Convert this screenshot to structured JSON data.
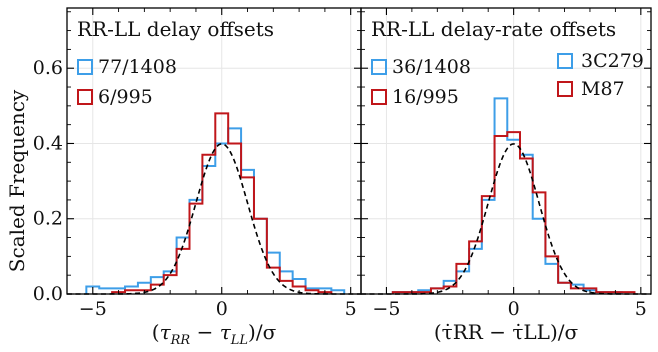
{
  "figure": {
    "ylabel": "Scaled Frequency"
  },
  "colors": {
    "3C279": "#3d9ee8",
    "M87": "#c0161a",
    "gaussian": "#000000",
    "grid": "#e6e6e6"
  },
  "legend": {
    "sources": [
      {
        "name": "3C279",
        "color": "#3d9ee8"
      },
      {
        "name": "M87",
        "color": "#c0161a"
      }
    ]
  },
  "chart_data": [
    {
      "type": "histogram",
      "title": "RR-LL delay offsets",
      "xlabel": "(τRR − τLL)/σ",
      "ylabel": "Scaled Frequency",
      "xlim": [
        -6.0,
        5.4
      ],
      "ylim": [
        0.0,
        0.76
      ],
      "xticks": [
        -5,
        0,
        5
      ],
      "yticks": [
        0.0,
        0.2,
        0.4,
        0.6
      ],
      "grid": true,
      "legend_position": "upper-left",
      "outlier_counts": [
        {
          "series": "3C279",
          "label": "77/1408"
        },
        {
          "series": "M87",
          "label": "6/995"
        }
      ],
      "reference_curve": {
        "type": "gaussian",
        "mean": 0,
        "sigma": 1,
        "style": "dashed"
      },
      "series": [
        {
          "name": "3C279",
          "bin_edges": [
            -5.25,
            -4.75,
            -4.25,
            -3.75,
            -3.25,
            -2.75,
            -2.25,
            -1.75,
            -1.25,
            -0.75,
            -0.25,
            0.25,
            0.75,
            1.25,
            1.75,
            2.25,
            2.75,
            3.25,
            3.75,
            4.25,
            4.75
          ],
          "values": [
            0.02,
            0.015,
            0.015,
            0.02,
            0.03,
            0.045,
            0.06,
            0.15,
            0.25,
            0.34,
            0.4,
            0.44,
            0.33,
            0.2,
            0.11,
            0.06,
            0.04,
            0.015,
            0.015,
            0.01
          ]
        },
        {
          "name": "M87",
          "bin_edges": [
            -4.25,
            -3.75,
            -3.25,
            -2.75,
            -2.25,
            -1.75,
            -1.25,
            -0.75,
            -0.25,
            0.25,
            0.75,
            1.25,
            1.75,
            2.25,
            2.75,
            3.25,
            3.75,
            4.25
          ],
          "values": [
            0.005,
            0.01,
            0.01,
            0.025,
            0.05,
            0.12,
            0.24,
            0.37,
            0.48,
            0.4,
            0.31,
            0.2,
            0.07,
            0.035,
            0.02,
            0.01,
            0.005
          ]
        }
      ]
    },
    {
      "type": "histogram",
      "title": "RR-LL delay-rate offsets",
      "xlabel": "(τ̇RR − τ̇LL)/σ",
      "ylabel": "",
      "xlim": [
        -6.0,
        5.4
      ],
      "ylim": [
        0.0,
        0.76
      ],
      "xticks": [
        -5,
        0,
        5
      ],
      "yticks": [
        0.0,
        0.2,
        0.4,
        0.6
      ],
      "grid": true,
      "legend_position": "upper-left",
      "outlier_counts": [
        {
          "series": "3C279",
          "label": "36/1408"
        },
        {
          "series": "M87",
          "label": "16/995"
        }
      ],
      "reference_curve": {
        "type": "gaussian",
        "mean": 0,
        "sigma": 1,
        "style": "dashed"
      },
      "series": [
        {
          "name": "3C279",
          "bin_edges": [
            -4.75,
            -4.25,
            -3.75,
            -3.25,
            -2.75,
            -2.25,
            -1.75,
            -1.25,
            -0.75,
            -0.25,
            0.25,
            0.75,
            1.25,
            1.75,
            2.25,
            2.75,
            3.25,
            3.75,
            4.25
          ],
          "values": [
            0.005,
            0.005,
            0.01,
            0.015,
            0.035,
            0.06,
            0.12,
            0.25,
            0.52,
            0.41,
            0.37,
            0.2,
            0.08,
            0.03,
            0.025,
            0.01,
            0.005,
            0.005
          ]
        },
        {
          "name": "M87",
          "bin_edges": [
            -4.75,
            -4.25,
            -3.75,
            -3.25,
            -2.75,
            -2.25,
            -1.75,
            -1.25,
            -0.75,
            -0.25,
            0.25,
            0.75,
            1.25,
            1.75,
            2.25,
            2.75,
            3.25,
            3.75,
            4.25,
            4.75
          ],
          "values": [
            0.005,
            0.005,
            0.005,
            0.015,
            0.02,
            0.08,
            0.14,
            0.26,
            0.42,
            0.43,
            0.36,
            0.27,
            0.1,
            0.03,
            0.015,
            0.015,
            0.005,
            0.005,
            0.005
          ]
        }
      ]
    }
  ]
}
